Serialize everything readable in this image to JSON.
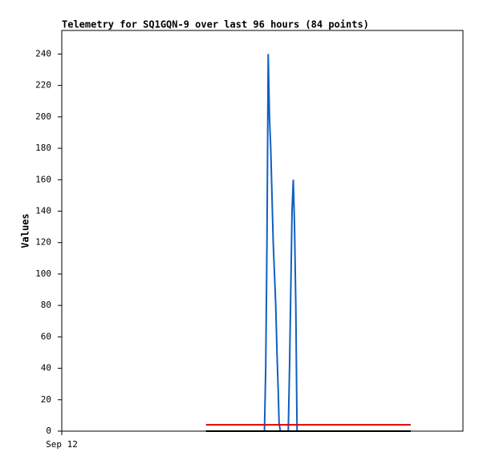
{
  "chart_data": {
    "type": "line",
    "title": "Telemetry for SQ1GQN-9 over last 96 hours (84 points)",
    "y_label": "Values",
    "xlim": [
      0,
      96
    ],
    "xticks": [
      {
        "value": 0,
        "label": "Sep 12"
      }
    ],
    "ylim": [
      0,
      255
    ],
    "yticks": [
      0,
      20,
      40,
      60,
      80,
      100,
      120,
      140,
      160,
      180,
      200,
      220,
      240
    ],
    "grid": false,
    "series": [
      {
        "color": "#000000",
        "x": [
          34.5,
          83.5
        ],
        "values": [
          0,
          0
        ]
      },
      {
        "color": "#e00000",
        "x": [
          34.5,
          83.5
        ],
        "values": [
          4,
          4
        ]
      },
      {
        "color": "#1060c0",
        "x": [
          48.5,
          48.8,
          49.1,
          49.4,
          49.7,
          50.0,
          50.3,
          50.6,
          50.9,
          51.2,
          51.5,
          51.8,
          52.0,
          52.3,
          54.2,
          54.5,
          54.8,
          55.1,
          55.4,
          55.7,
          56.0,
          56.3
        ],
        "values": [
          0,
          40,
          120,
          240,
          200,
          180,
          150,
          120,
          100,
          80,
          50,
          25,
          5,
          0,
          0,
          40,
          90,
          140,
          160,
          130,
          80,
          0
        ]
      }
    ]
  }
}
